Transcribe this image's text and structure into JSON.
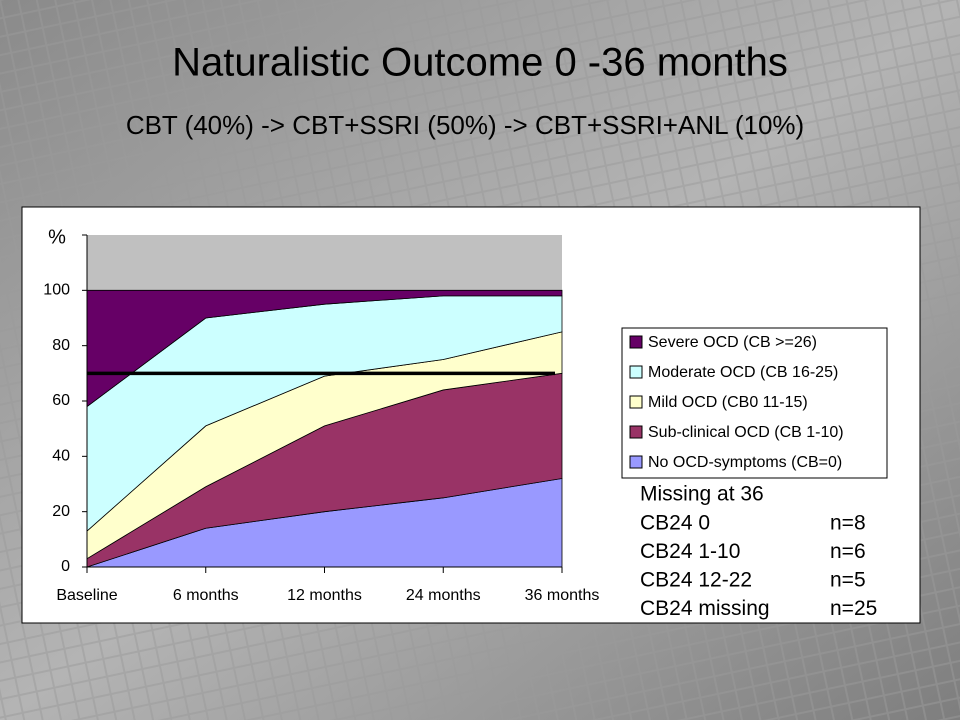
{
  "chart_data": {
    "type": "stacked_area",
    "title": "Naturalistic Outcome 0 -36 months",
    "subtitle": "CBT (40%) -> CBT+SSRI (50%) -> CBT+SSRI+ANL (10%)",
    "y_label": "%",
    "categories": [
      "Baseline",
      "6 months",
      "12 months",
      "24 months",
      "36 months"
    ],
    "series": [
      {
        "name": "No OCD-symptoms (CB=0)",
        "color": "#9999ff",
        "values": [
          0,
          14,
          20,
          25,
          32
        ]
      },
      {
        "name": "Sub-clinical OCD (CB 1-10)",
        "color": "#993366",
        "values": [
          3,
          15,
          31,
          39,
          38
        ]
      },
      {
        "name": "Mild OCD (CB0 11-15)",
        "color": "#ffffcc",
        "values": [
          10,
          22,
          18,
          11,
          15
        ]
      },
      {
        "name": "Moderate OCD (CB 16-25)",
        "color": "#ccffff",
        "values": [
          45,
          39,
          26,
          23,
          13
        ]
      },
      {
        "name": "Severe OCD (CB >=26)",
        "color": "#660066",
        "values": [
          42,
          10,
          5,
          2,
          2
        ]
      }
    ],
    "reference_line": 70,
    "ylim": [
      0,
      120
    ],
    "yticks": [
      0,
      20,
      40,
      60,
      80,
      100
    ],
    "plot_background": "#c0c0c0",
    "legend_position": "right",
    "notes": {
      "title": "Missing at 36",
      "rows": [
        [
          "CB24 0",
          "n=8"
        ],
        [
          "CB24 1-10",
          "n=6"
        ],
        [
          "CB24 12-22",
          "n=5"
        ],
        [
          "CB24 missing",
          "n=25"
        ]
      ]
    }
  }
}
